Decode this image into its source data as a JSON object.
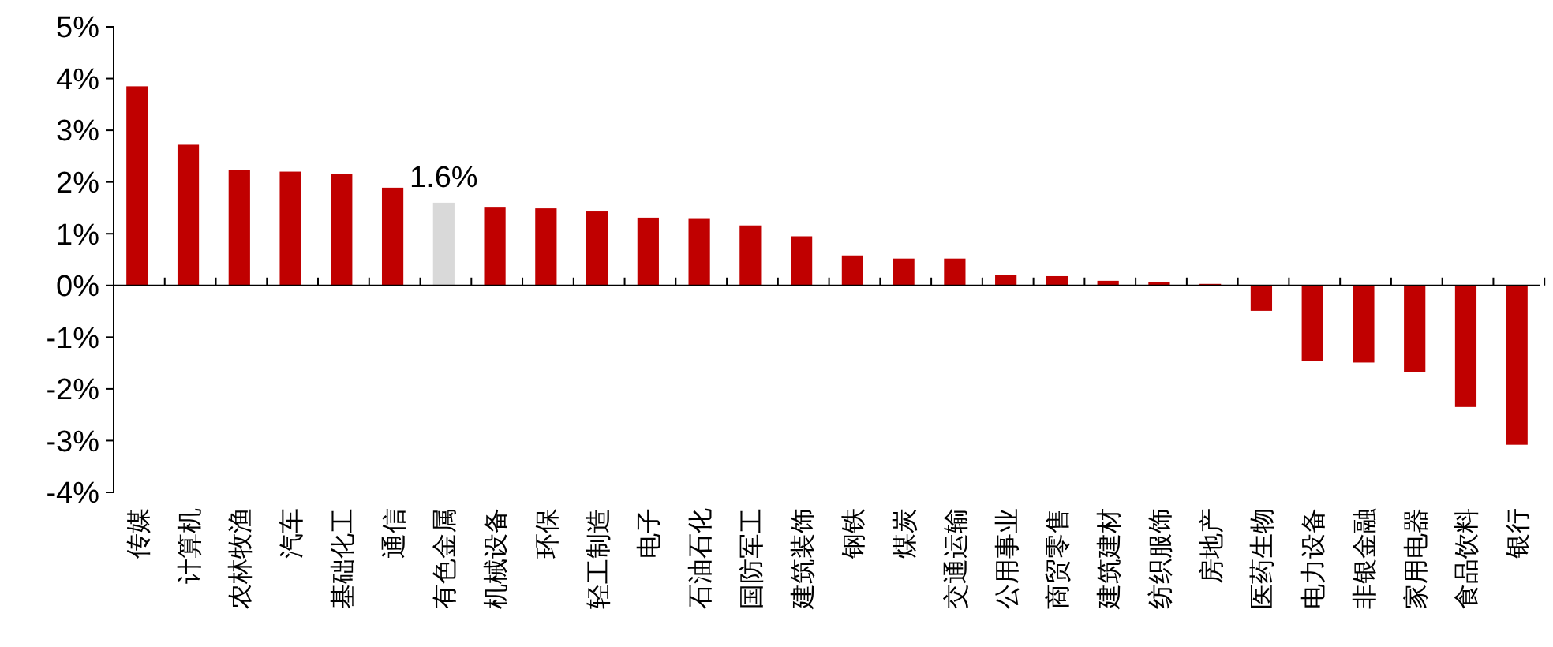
{
  "chart_data": {
    "type": "bar",
    "categories": [
      "传媒",
      "计算机",
      "农林牧渔",
      "汽车",
      "基础化工",
      "通信",
      "有色金属",
      "机械设备",
      "环保",
      "轻工制造",
      "电子",
      "石油石化",
      "国防军工",
      "建筑装饰",
      "钢铁",
      "煤炭",
      "交通运输",
      "公用事业",
      "商贸零售",
      "建筑建材",
      "纺织服饰",
      "房地产",
      "医药生物",
      "电力设备",
      "非银金融",
      "家用电器",
      "食品饮料",
      "银行"
    ],
    "values": [
      3.85,
      2.72,
      2.23,
      2.2,
      2.16,
      1.89,
      1.6,
      1.52,
      1.49,
      1.43,
      1.31,
      1.3,
      1.16,
      0.95,
      0.58,
      0.52,
      0.52,
      0.21,
      0.18,
      0.09,
      0.06,
      0.03,
      -0.49,
      -1.46,
      -1.49,
      -1.68,
      -2.35,
      -3.08
    ],
    "colors": [
      "#c00000",
      "#c00000",
      "#c00000",
      "#c00000",
      "#c00000",
      "#c00000",
      "#d9d9d9",
      "#c00000",
      "#c00000",
      "#c00000",
      "#c00000",
      "#c00000",
      "#c00000",
      "#c00000",
      "#c00000",
      "#c00000",
      "#c00000",
      "#c00000",
      "#c00000",
      "#c00000",
      "#c00000",
      "#c00000",
      "#c00000",
      "#c00000",
      "#c00000",
      "#c00000",
      "#c00000",
      "#c00000"
    ],
    "value_labels": [
      null,
      null,
      null,
      null,
      null,
      null,
      "1.6%",
      null,
      null,
      null,
      null,
      null,
      null,
      null,
      null,
      null,
      null,
      null,
      null,
      null,
      null,
      null,
      null,
      null,
      null,
      null,
      null,
      null
    ],
    "ylim": [
      -4,
      5
    ],
    "yticks": [
      {
        "value": -4,
        "label": "-4%"
      },
      {
        "value": -3,
        "label": "-3%"
      },
      {
        "value": -2,
        "label": "-2%"
      },
      {
        "value": -1,
        "label": "-1%"
      },
      {
        "value": 0,
        "label": "0%"
      },
      {
        "value": 1,
        "label": "1%"
      },
      {
        "value": 2,
        "label": "2%"
      },
      {
        "value": 3,
        "label": "3%"
      },
      {
        "value": 4,
        "label": "4%"
      },
      {
        "value": 5,
        "label": "5%"
      }
    ]
  }
}
